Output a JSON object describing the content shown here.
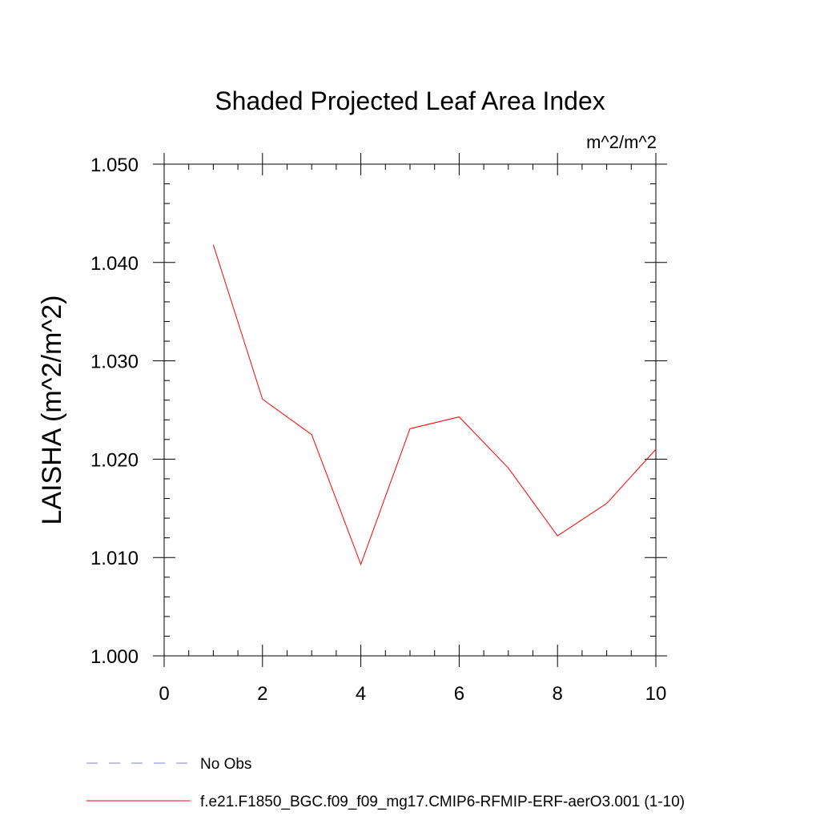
{
  "chart_data": {
    "type": "line",
    "title": "Shaded Projected Leaf Area Index",
    "units_label": "m^2/m^2",
    "xlabel": "",
    "ylabel": "LAISHA  (m^2/m^2)",
    "xlim": [
      0,
      10
    ],
    "ylim": [
      1.0,
      1.05
    ],
    "x_ticks": [
      0,
      2,
      4,
      6,
      8,
      10
    ],
    "x_tick_labels": [
      "0",
      "2",
      "4",
      "6",
      "8",
      "10"
    ],
    "y_ticks": [
      1.0,
      1.01,
      1.02,
      1.03,
      1.04,
      1.05
    ],
    "y_tick_labels": [
      "1.000",
      "1.010",
      "1.020",
      "1.030",
      "1.040",
      "1.050"
    ],
    "grid": false,
    "legend_position": "bottom-left",
    "series": [
      {
        "name": "f.e21.F1850_BGC.f09_f09_mg17.CMIP6-RFMIP-ERF-aerO3.001 (1-10)",
        "color": "#ff0000",
        "style": "solid",
        "x": [
          1,
          2,
          3,
          4,
          5,
          6,
          7,
          8,
          9,
          10
        ],
        "y": [
          1.0418,
          1.0261,
          1.0225,
          1.0093,
          1.0231,
          1.0243,
          1.0191,
          1.0122,
          1.0155,
          1.021
        ]
      },
      {
        "name": "No Obs",
        "color": "#8080c0",
        "style": "dashed",
        "x": [],
        "y": []
      }
    ]
  }
}
